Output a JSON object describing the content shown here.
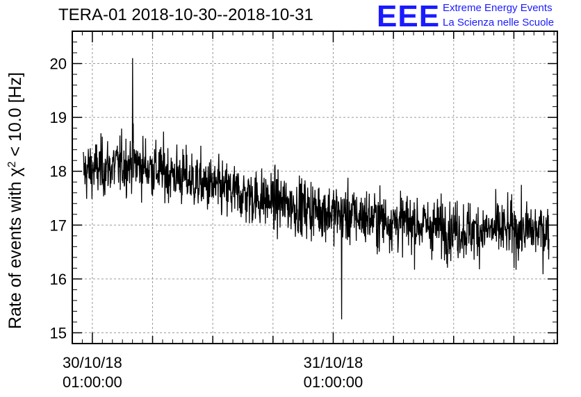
{
  "header": {
    "title": "TERA-01 2018-10-30--2018-10-31",
    "logo_mark": "EEE",
    "logo_line1": "Extreme Energy Events",
    "logo_line2": "La Scienza nelle Scuole"
  },
  "colors": {
    "logo": "#1a1aff",
    "series": "#000000",
    "grid": "#9a9a9a"
  },
  "chart_data": {
    "type": "line",
    "title": "TERA-01 2018-10-30--2018-10-31",
    "ylabel_prefix": "Rate of events with χ",
    "ylabel_sup": "2",
    "ylabel_suffix": " < 10.0 [Hz]",
    "xlabel": "",
    "ylim": [
      14.8,
      20.6
    ],
    "xlim": [
      "2018-10-29T23:00:00",
      "2018-10-31T23:20:00"
    ],
    "y_ticks": [
      15,
      16,
      17,
      18,
      19,
      20
    ],
    "x_ticks": [
      {
        "x": "2018-10-30T01:00:00",
        "date": "30/10/18",
        "time": "01:00:00"
      },
      {
        "x": "2018-10-31T01:00:00",
        "date": "31/10/18",
        "time": "01:00:00"
      }
    ],
    "grid": true,
    "series": [
      {
        "x_start": "2018-10-30T00:06:00",
        "x_end": "2018-10-31T22:30:00",
        "trend": [
          {
            "x": "2018-10-30T00:06:00",
            "y": 18.0
          },
          {
            "x": "2018-10-30T05:00:00",
            "y": 18.15
          },
          {
            "x": "2018-10-30T09:00:00",
            "y": 17.95
          },
          {
            "x": "2018-10-30T14:00:00",
            "y": 17.65
          },
          {
            "x": "2018-10-30T20:00:00",
            "y": 17.4
          },
          {
            "x": "2018-10-31T02:00:00",
            "y": 17.2
          },
          {
            "x": "2018-10-31T08:00:00",
            "y": 17.05
          },
          {
            "x": "2018-10-31T14:00:00",
            "y": 16.9
          },
          {
            "x": "2018-10-31T22:30:00",
            "y": 16.9
          }
        ],
        "max": {
          "x": "2018-10-30T05:00:00",
          "y": 20.1
        },
        "min": {
          "x": "2018-10-31T01:50:00",
          "y": 15.25
        }
      }
    ]
  }
}
